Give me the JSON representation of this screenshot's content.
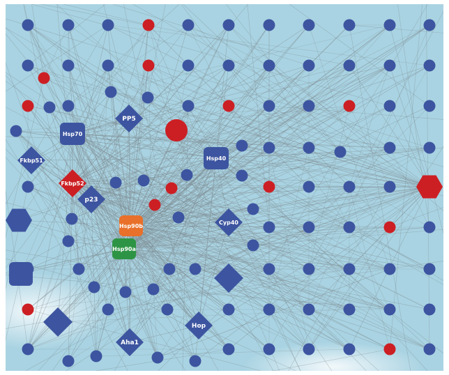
{
  "colors": {
    "background": "#a9d3e2",
    "edge": "#7d8a90",
    "node_blue": "#3d55a0",
    "node_red": "#cc1f24",
    "hsp90b": "#e8702a",
    "hsp90a": "#2e9445",
    "label_text": "#ffffff"
  },
  "hubs": [
    {
      "id": "hsp70",
      "label": "Hsp70",
      "shape": "rounded-square",
      "color": "node_blue"
    },
    {
      "id": "pp5",
      "label": "PP5",
      "shape": "diamond",
      "color": "node_blue"
    },
    {
      "id": "fkbp51",
      "label": "Fkbp51",
      "shape": "diamond",
      "color": "node_blue"
    },
    {
      "id": "hsp40",
      "label": "Hsp40",
      "shape": "rounded-square",
      "color": "node_blue"
    },
    {
      "id": "fkbp52",
      "label": "Fkbp52",
      "shape": "diamond",
      "color": "node_red"
    },
    {
      "id": "p23",
      "label": "p23",
      "shape": "diamond",
      "color": "node_blue"
    },
    {
      "id": "hsp90b",
      "label": "Hsp90b",
      "shape": "rounded-square",
      "color": "hsp90b"
    },
    {
      "id": "cyp40",
      "label": "Cyp40",
      "shape": "diamond",
      "color": "node_blue"
    },
    {
      "id": "hsp90a",
      "label": "Hsp90a",
      "shape": "rounded-square",
      "color": "hsp90a"
    },
    {
      "id": "hop",
      "label": "Hop",
      "shape": "diamond",
      "color": "node_blue"
    },
    {
      "id": "aha1",
      "label": "Aha1",
      "shape": "diamond",
      "color": "node_blue"
    }
  ]
}
